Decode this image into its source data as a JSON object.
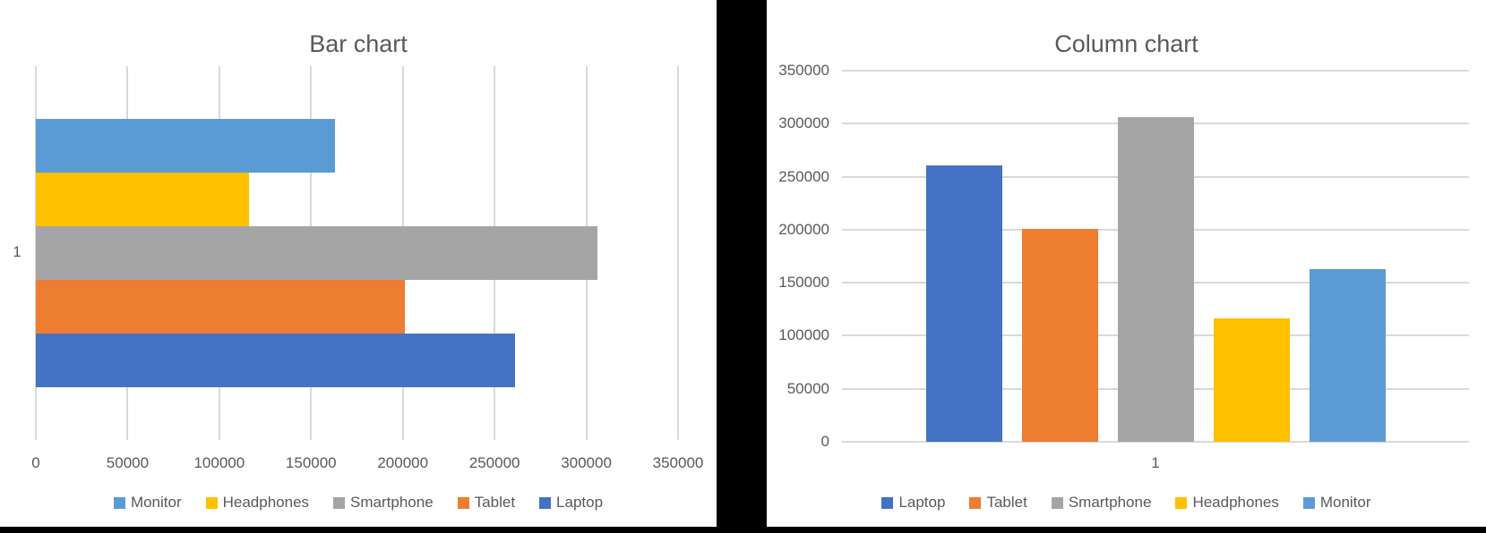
{
  "page": {
    "background_color": "#000000",
    "panel_color": "#FFFFFF",
    "text_color": "#595959",
    "gridline_color": "#D9D9D9"
  },
  "chart_data": [
    {
      "type": "bar",
      "orientation": "horizontal",
      "title": "Bar chart",
      "categories": [
        "1"
      ],
      "series": [
        {
          "name": "Monitor",
          "values": [
            163000
          ],
          "color": "#5B9BD5"
        },
        {
          "name": "Headphones",
          "values": [
            116000
          ],
          "color": "#FFC000"
        },
        {
          "name": "Smartphone",
          "values": [
            306000
          ],
          "color": "#A5A5A5"
        },
        {
          "name": "Tablet",
          "values": [
            201000
          ],
          "color": "#ED7D31"
        },
        {
          "name": "Laptop",
          "values": [
            261000
          ],
          "color": "#4472C4"
        }
      ],
      "value_axis": {
        "min": 0,
        "max": 350000,
        "step": 50000,
        "tick_labels": [
          "0",
          "50000",
          "100000",
          "150000",
          "200000",
          "250000",
          "300000",
          "350000"
        ]
      },
      "grid": "vertical",
      "legend": {
        "position": "bottom",
        "items": [
          "Monitor",
          "Headphones",
          "Smartphone",
          "Tablet",
          "Laptop"
        ]
      }
    },
    {
      "type": "bar",
      "orientation": "vertical",
      "title": "Column chart",
      "categories": [
        "1"
      ],
      "series": [
        {
          "name": "Laptop",
          "values": [
            261000
          ],
          "color": "#4472C4"
        },
        {
          "name": "Tablet",
          "values": [
            201000
          ],
          "color": "#ED7D31"
        },
        {
          "name": "Smartphone",
          "values": [
            306000
          ],
          "color": "#A5A5A5"
        },
        {
          "name": "Headphones",
          "values": [
            116000
          ],
          "color": "#FFC000"
        },
        {
          "name": "Monitor",
          "values": [
            163000
          ],
          "color": "#5B9BD5"
        }
      ],
      "value_axis": {
        "min": 0,
        "max": 350000,
        "step": 50000,
        "tick_labels": [
          "0",
          "50000",
          "100000",
          "150000",
          "200000",
          "250000",
          "300000",
          "350000"
        ]
      },
      "grid": "horizontal",
      "legend": {
        "position": "bottom",
        "items": [
          "Laptop",
          "Tablet",
          "Smartphone",
          "Headphones",
          "Monitor"
        ]
      }
    }
  ]
}
